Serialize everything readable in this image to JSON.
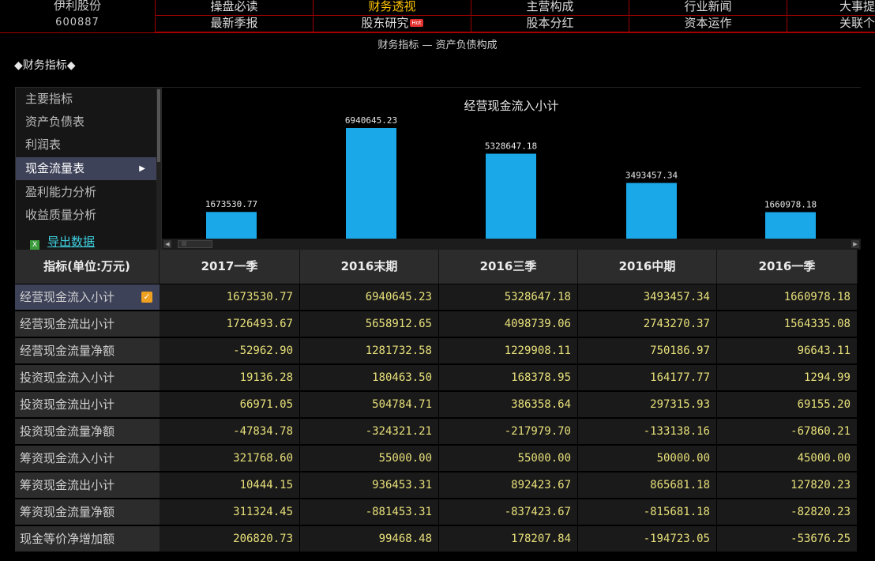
{
  "stock": {
    "name": "伊利股份",
    "code": "600887"
  },
  "nav": {
    "row1": [
      "操盘必读",
      "财务透视",
      "主营构成",
      "行业新闻",
      "大事提"
    ],
    "row2": [
      "最新季报",
      "股东研究",
      "股本分红",
      "资本运作",
      "关联个"
    ],
    "hot_badge": "Hot",
    "active": "财务透视"
  },
  "breadcrumb": "财务指标  —  资产负债构成",
  "section_title": "◆财务指标◆",
  "menu": {
    "items": [
      "主要指标",
      "资产负债表",
      "利润表",
      "现金流量表",
      "盈利能力分析",
      "收益质量分析"
    ],
    "active_index": 3,
    "export_label": "导出数据"
  },
  "chart_data": {
    "type": "bar",
    "title": "经营现金流入小计",
    "categories": [
      "2017一季",
      "2016末期",
      "2016三季",
      "2016中期",
      "2016一季"
    ],
    "values": [
      1673530.77,
      6940645.23,
      5328647.18,
      3493457.34,
      1660978.18
    ],
    "labels": [
      "1673530.77",
      "6940645.23",
      "5328647.18",
      "3493457.34",
      "1660978.18"
    ],
    "bar_color": "#1aa8e8",
    "ylim": [
      0,
      6940645.23
    ]
  },
  "table": {
    "header_label": "指标(单位:万元)",
    "columns": [
      "2017一季",
      "2016末期",
      "2016三季",
      "2016中期",
      "2016一季"
    ],
    "selected_row": 0,
    "rows": [
      {
        "label": "经营现金流入小计",
        "values": [
          "1673530.77",
          "6940645.23",
          "5328647.18",
          "3493457.34",
          "1660978.18"
        ]
      },
      {
        "label": "经营现金流出小计",
        "values": [
          "1726493.67",
          "5658912.65",
          "4098739.06",
          "2743270.37",
          "1564335.08"
        ]
      },
      {
        "label": "经营现金流量净额",
        "values": [
          "-52962.90",
          "1281732.58",
          "1229908.11",
          "750186.97",
          "96643.11"
        ]
      },
      {
        "label": "投资现金流入小计",
        "values": [
          "19136.28",
          "180463.50",
          "168378.95",
          "164177.77",
          "1294.99"
        ]
      },
      {
        "label": "投资现金流出小计",
        "values": [
          "66971.05",
          "504784.71",
          "386358.64",
          "297315.93",
          "69155.20"
        ]
      },
      {
        "label": "投资现金流量净额",
        "values": [
          "-47834.78",
          "-324321.21",
          "-217979.70",
          "-133138.16",
          "-67860.21"
        ]
      },
      {
        "label": "筹资现金流入小计",
        "values": [
          "321768.60",
          "55000.00",
          "55000.00",
          "50000.00",
          "45000.00"
        ]
      },
      {
        "label": "筹资现金流出小计",
        "values": [
          "10444.15",
          "936453.31",
          "892423.67",
          "865681.18",
          "127820.23"
        ]
      },
      {
        "label": "筹资现金流量净额",
        "values": [
          "311324.45",
          "-881453.31",
          "-837423.67",
          "-815681.18",
          "-82820.23"
        ]
      },
      {
        "label": "现金等价净增加额",
        "values": [
          "206820.73",
          "99468.48",
          "178207.84",
          "-194723.05",
          "-53676.25"
        ]
      }
    ]
  }
}
